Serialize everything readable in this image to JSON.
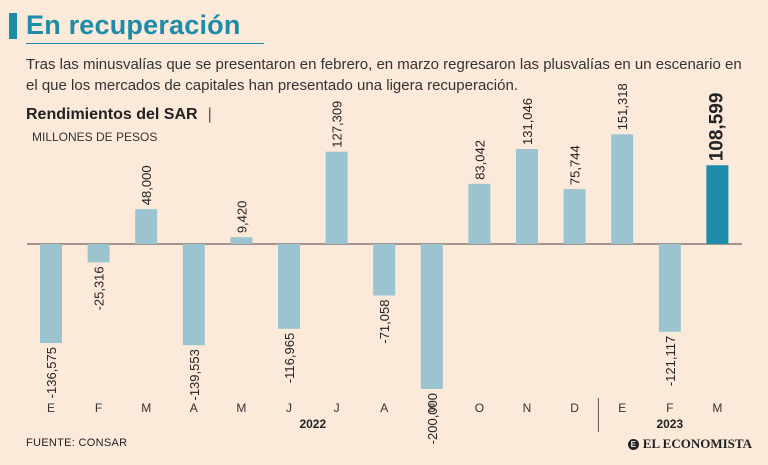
{
  "header": {
    "title": "En recuperación",
    "subtitle": "Tras las minusvalías que se presentaron en febrero, en marzo regresaron las plusvalías en un escenario en el que los mercados de capitales han presentado una ligera recuperación.",
    "chart_title": "Rendimientos del SAR",
    "chart_title_sep": "|",
    "unit": "MILLONES DE PESOS"
  },
  "footer": {
    "source": "FUENTE: CONSAR",
    "logo_mark": "E",
    "logo_text": "EL ECONOMISTA"
  },
  "colors": {
    "accent": "#1c8ca8",
    "bar": "#9cc4d0",
    "bar_highlight": "#1c8ca8",
    "background": "#fbe9da"
  },
  "chart_data": {
    "type": "bar",
    "title": "Rendimientos del SAR",
    "ylabel": "MILLONES DE PESOS",
    "categories": [
      "E",
      "F",
      "M",
      "A",
      "M",
      "J",
      "J",
      "A",
      "S",
      "O",
      "N",
      "D",
      "E",
      "F",
      "M"
    ],
    "values": [
      -136575,
      -25316,
      48000,
      -139553,
      9420,
      -116965,
      127309,
      -71058,
      -200000,
      83042,
      131046,
      75744,
      151318,
      -121117,
      108599
    ],
    "labels": [
      "-136,575",
      "-25,316",
      "48,000",
      "-139,553",
      "9,420",
      "-116,965",
      "127,309",
      "-71,058",
      "-200,000",
      "83,042",
      "131,046",
      "75,744",
      "151,318",
      "-121,117",
      "108,599"
    ],
    "highlight_index": 14,
    "year_groups": [
      {
        "label": "2022",
        "start": 0,
        "end": 11
      },
      {
        "label": "2023",
        "start": 12,
        "end": 14
      }
    ],
    "ylim": [
      -200000,
      151318
    ],
    "grid": false
  }
}
